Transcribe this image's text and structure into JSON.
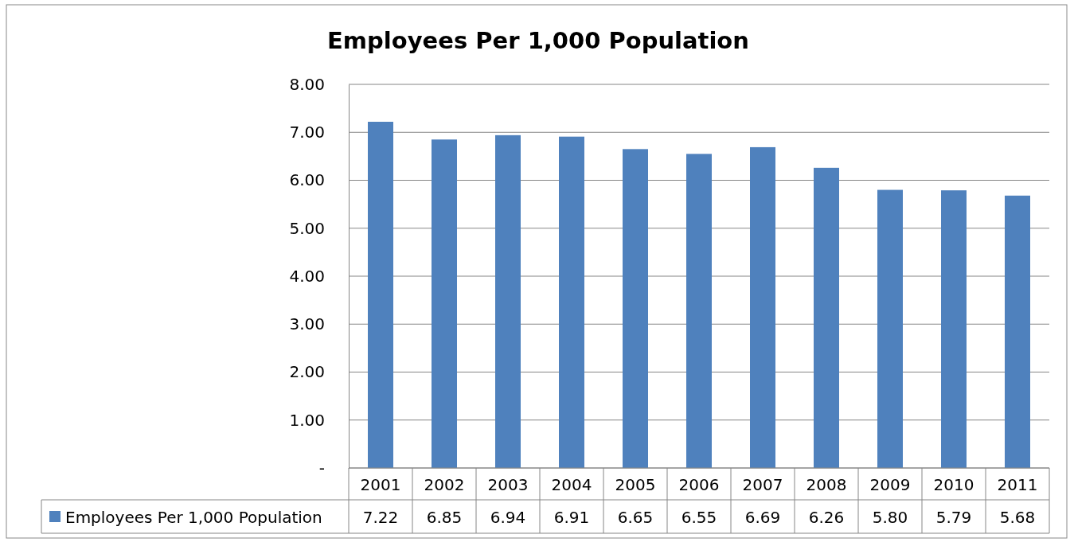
{
  "chart_data": {
    "type": "bar",
    "title": "Employees Per 1,000 Population",
    "categories": [
      "2001",
      "2002",
      "2003",
      "2004",
      "2005",
      "2006",
      "2007",
      "2008",
      "2009",
      "2010",
      "2011"
    ],
    "series": [
      {
        "name": "Employees Per 1,000 Population",
        "color": "#4f81bd",
        "values": [
          7.22,
          6.85,
          6.94,
          6.91,
          6.65,
          6.55,
          6.69,
          6.26,
          5.8,
          5.79,
          5.68
        ],
        "value_labels": [
          "7.22",
          "6.85",
          "6.94",
          "6.91",
          "6.65",
          "6.55",
          "6.69",
          "6.26",
          "5.80",
          "5.79",
          "5.68"
        ]
      }
    ],
    "ylim": [
      0,
      8
    ],
    "yticks": [
      {
        "value": 0,
        "label": "-"
      },
      {
        "value": 1,
        "label": "1.00"
      },
      {
        "value": 2,
        "label": "2.00"
      },
      {
        "value": 3,
        "label": "3.00"
      },
      {
        "value": 4,
        "label": "4.00"
      },
      {
        "value": 5,
        "label": "5.00"
      },
      {
        "value": 6,
        "label": "6.00"
      },
      {
        "value": 7,
        "label": "7.00"
      },
      {
        "value": 8,
        "label": "8.00"
      }
    ],
    "grid": "y",
    "legend": "bottom"
  }
}
